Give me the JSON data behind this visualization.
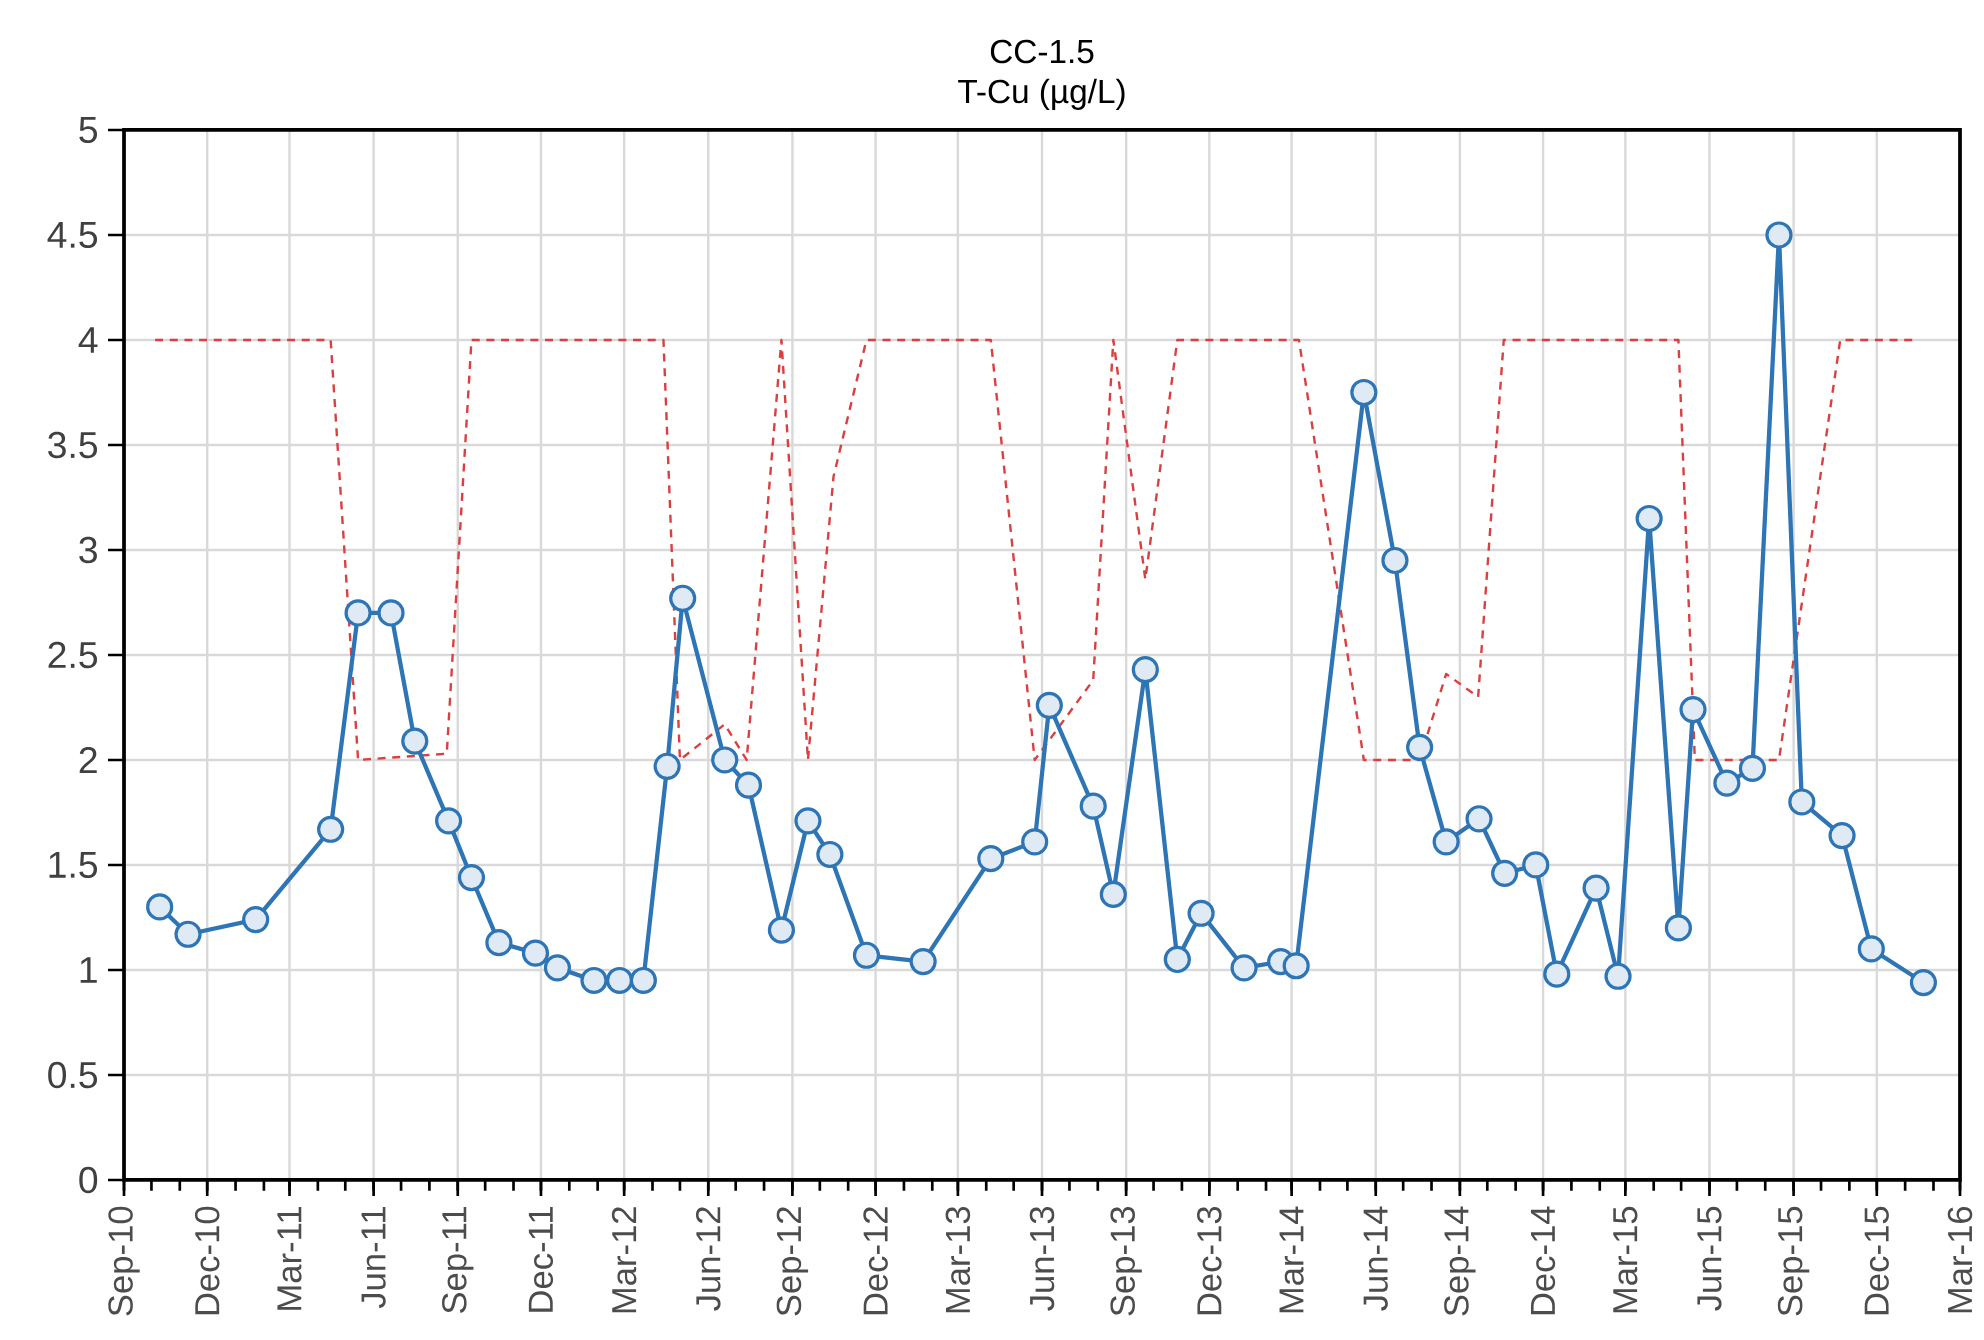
{
  "chart_data": {
    "type": "line",
    "title": "CC-1.5",
    "subtitle": "T-Cu (µg/L)",
    "xlim": [
      "2010-09-01",
      "2016-03-01"
    ],
    "xticks": [
      {
        "value": "2010-09-01",
        "label": "Sep-10"
      },
      {
        "value": "2010-12-01",
        "label": "Dec-10"
      },
      {
        "value": "2011-03-01",
        "label": "Mar-11"
      },
      {
        "value": "2011-06-01",
        "label": "Jun-11"
      },
      {
        "value": "2011-09-01",
        "label": "Sep-11"
      },
      {
        "value": "2011-12-01",
        "label": "Dec-11"
      },
      {
        "value": "2012-03-01",
        "label": "Mar-12"
      },
      {
        "value": "2012-06-01",
        "label": "Jun-12"
      },
      {
        "value": "2012-09-01",
        "label": "Sep-12"
      },
      {
        "value": "2012-12-01",
        "label": "Dec-12"
      },
      {
        "value": "2013-03-01",
        "label": "Mar-13"
      },
      {
        "value": "2013-06-01",
        "label": "Jun-13"
      },
      {
        "value": "2013-09-01",
        "label": "Sep-13"
      },
      {
        "value": "2013-12-01",
        "label": "Dec-13"
      },
      {
        "value": "2014-03-01",
        "label": "Mar-14"
      },
      {
        "value": "2014-06-01",
        "label": "Jun-14"
      },
      {
        "value": "2014-09-01",
        "label": "Sep-14"
      },
      {
        "value": "2014-12-01",
        "label": "Dec-14"
      },
      {
        "value": "2015-03-01",
        "label": "Mar-15"
      },
      {
        "value": "2015-06-01",
        "label": "Jun-15"
      },
      {
        "value": "2015-09-01",
        "label": "Sep-15"
      },
      {
        "value": "2015-12-01",
        "label": "Dec-15"
      },
      {
        "value": "2016-03-01",
        "label": "Mar-16"
      }
    ],
    "ylim": [
      0,
      5
    ],
    "yticks": [
      0,
      0.5,
      1,
      1.5,
      2,
      2.5,
      3,
      3.5,
      4,
      4.5,
      5
    ],
    "grid": true,
    "legend": false,
    "series": [
      {
        "color": "#d9413f",
        "line_style": "dashed",
        "marker": "none",
        "x": [
          "2010-10-05",
          "2011-04-15",
          "2011-05-15",
          "2011-08-20",
          "2011-09-16",
          "2012-04-13",
          "2012-05-01",
          "2012-06-19",
          "2012-07-13",
          "2012-08-20",
          "2012-09-18",
          "2012-10-16",
          "2012-11-21",
          "2013-04-06",
          "2013-05-24",
          "2013-07-27",
          "2013-08-18",
          "2013-09-22",
          "2013-10-27",
          "2014-03-09",
          "2014-05-19",
          "2014-07-19",
          "2014-08-17",
          "2014-09-21",
          "2014-10-19",
          "2015-04-28",
          "2015-05-16",
          "2015-08-16",
          "2015-10-22",
          "2016-01-10"
        ],
        "values": [
          4,
          4,
          2,
          2.03,
          4,
          4,
          2,
          2.17,
          2,
          4,
          2,
          3.35,
          4,
          4,
          2,
          2.38,
          4,
          2.86,
          4,
          4,
          2,
          2,
          2.41,
          2.3,
          4,
          4,
          2,
          2,
          4,
          4
        ]
      },
      {
        "color": "#2e75b6",
        "line_style": "solid",
        "marker": "circle",
        "x": [
          "2010-10-10",
          "2010-11-10",
          "2011-01-23",
          "2011-04-15",
          "2011-05-15",
          "2011-06-20",
          "2011-07-16",
          "2011-08-22",
          "2011-09-16",
          "2011-10-16",
          "2011-11-25",
          "2011-12-19",
          "2012-01-28",
          "2012-02-25",
          "2012-03-22",
          "2012-04-17",
          "2012-05-04",
          "2012-06-19",
          "2012-07-15",
          "2012-08-20",
          "2012-09-18",
          "2012-10-12",
          "2012-11-21",
          "2013-01-22",
          "2013-04-06",
          "2013-05-24",
          "2013-06-09",
          "2013-07-27",
          "2013-08-18",
          "2013-09-22",
          "2013-10-27",
          "2013-11-22",
          "2014-01-08",
          "2014-02-17",
          "2014-03-06",
          "2014-05-19",
          "2014-06-22",
          "2014-07-19",
          "2014-08-17",
          "2014-09-22",
          "2014-10-20",
          "2014-11-23",
          "2014-12-16",
          "2015-01-28",
          "2015-02-21",
          "2015-03-27",
          "2015-04-28",
          "2015-05-14",
          "2015-06-20",
          "2015-07-18",
          "2015-08-16",
          "2015-09-10",
          "2015-10-24",
          "2015-11-25",
          "2016-01-21"
        ],
        "values": [
          1.3,
          1.17,
          1.24,
          1.67,
          2.7,
          2.7,
          2.09,
          1.71,
          1.44,
          1.13,
          1.08,
          1.01,
          0.95,
          0.95,
          0.95,
          1.97,
          2.77,
          2.0,
          1.88,
          1.19,
          1.71,
          1.55,
          1.07,
          1.04,
          1.53,
          1.61,
          2.26,
          1.78,
          1.36,
          2.43,
          1.05,
          1.27,
          1.01,
          1.04,
          1.02,
          3.75,
          2.95,
          2.06,
          1.61,
          1.72,
          1.46,
          1.5,
          0.98,
          1.39,
          0.97,
          3.15,
          1.2,
          2.24,
          1.89,
          1.96,
          4.5,
          1.8,
          1.64,
          1.1,
          0.94
        ]
      }
    ]
  }
}
